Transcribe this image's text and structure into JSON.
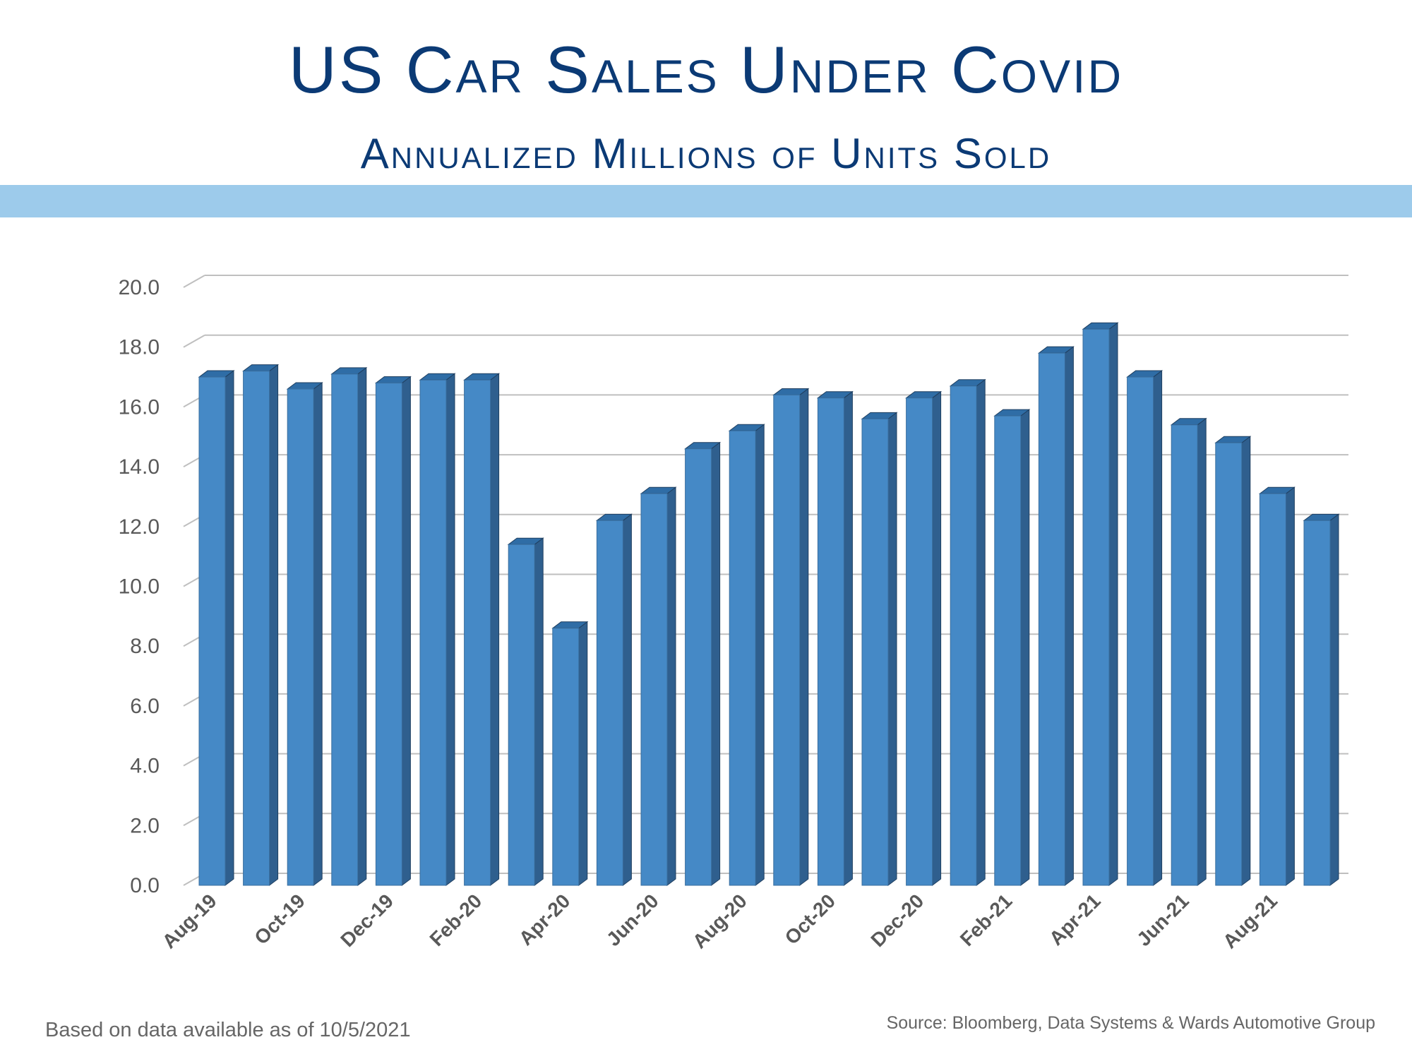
{
  "header": {
    "title": "US Car Sales Under Covid",
    "subtitle": "Annualized Millions of Units Sold"
  },
  "footer": {
    "note": "Based on data available as of 10/5/2021",
    "source": "Source:  Bloomberg, Data Systems & Wards Automotive Group"
  },
  "colors": {
    "title": "#0B3A75",
    "band": "#9DCBEB",
    "bar_front": "#4589C6",
    "bar_side": "#2F5F8E",
    "bar_top": "#2F6DA6",
    "grid": "#BFBFBF",
    "text": "#595959"
  },
  "chart_data": {
    "type": "bar",
    "categories": [
      "Aug-19",
      "Sep-19",
      "Oct-19",
      "Nov-19",
      "Dec-19",
      "Jan-20",
      "Feb-20",
      "Mar-20",
      "Apr-20",
      "May-20",
      "Jun-20",
      "Jul-20",
      "Aug-20",
      "Sep-20",
      "Oct-20",
      "Nov-20",
      "Dec-20",
      "Jan-21",
      "Feb-21",
      "Mar-21",
      "Apr-21",
      "May-21",
      "Jun-21",
      "Jul-21",
      "Aug-21",
      "Sep-21"
    ],
    "tick_labels": [
      "Aug-19",
      "",
      "Oct-19",
      "",
      "Dec-19",
      "",
      "Feb-20",
      "",
      "Apr-20",
      "",
      "Jun-20",
      "",
      "Aug-20",
      "",
      "Oct-20",
      "",
      "Dec-20",
      "",
      "Feb-21",
      "",
      "Apr-21",
      "",
      "Jun-21",
      "",
      "Aug-21",
      ""
    ],
    "values": [
      17.0,
      17.2,
      16.6,
      17.1,
      16.8,
      16.9,
      16.9,
      11.4,
      8.6,
      12.2,
      13.1,
      14.6,
      15.2,
      16.4,
      16.3,
      15.6,
      16.3,
      16.7,
      15.7,
      17.8,
      18.6,
      17.0,
      15.4,
      14.8,
      13.1,
      12.2
    ],
    "ylim": [
      0,
      20
    ],
    "yticks": [
      "0.0",
      "2.0",
      "4.0",
      "6.0",
      "8.0",
      "10.0",
      "12.0",
      "14.0",
      "16.0",
      "18.0",
      "20.0"
    ],
    "grid": true,
    "legend": "none"
  }
}
